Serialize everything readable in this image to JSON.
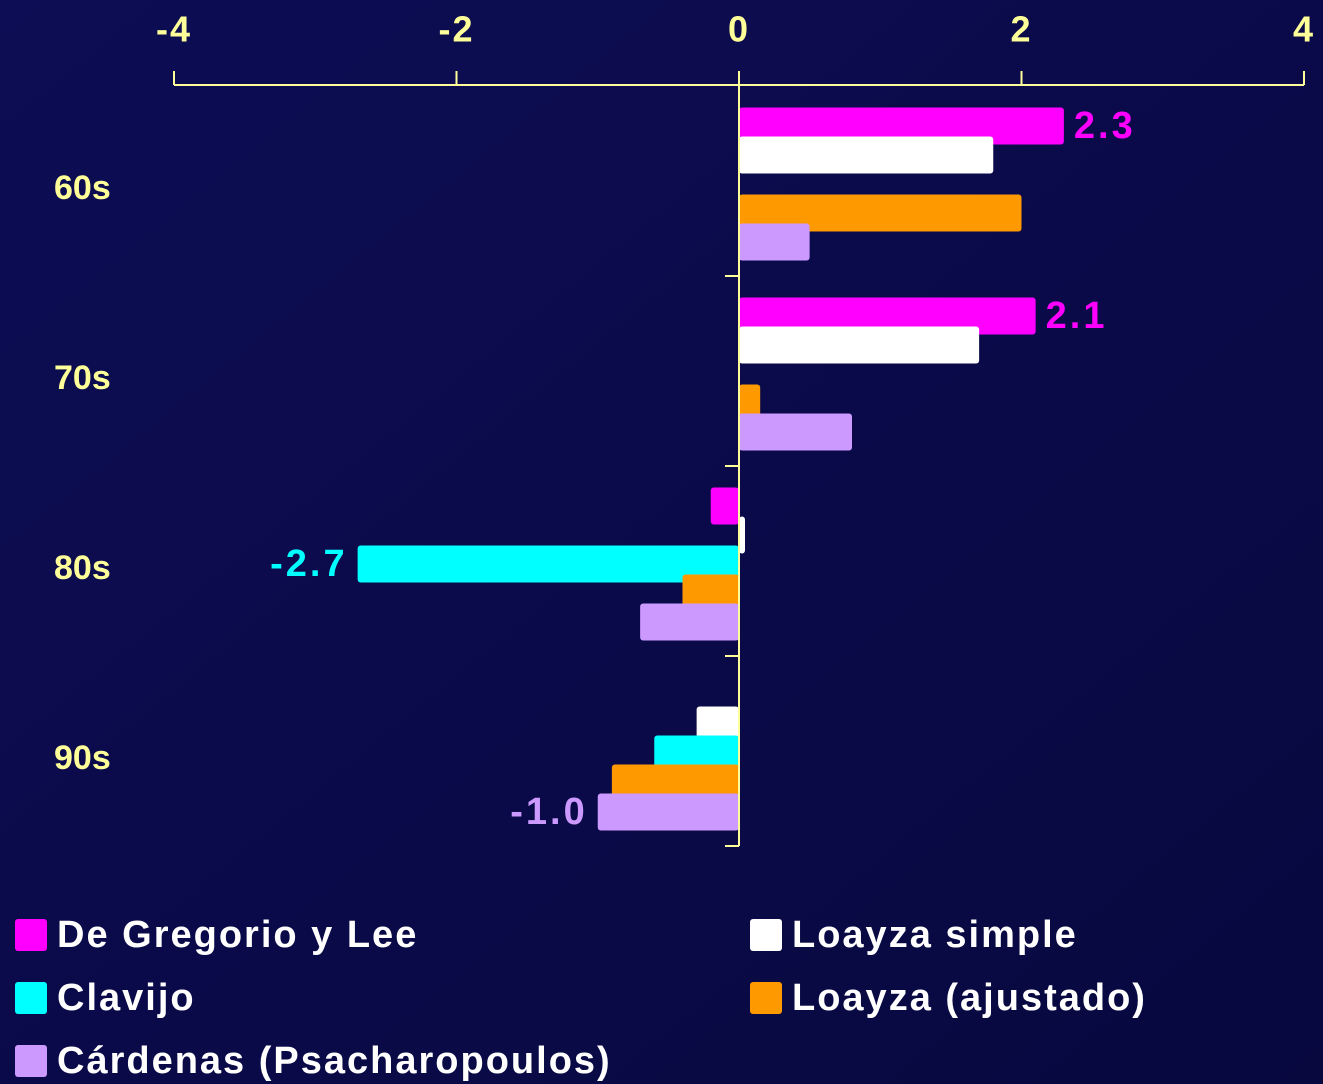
{
  "chart_data": {
    "type": "bar",
    "orientation": "horizontal",
    "categories": [
      "60s",
      "70s",
      "80s",
      "90s"
    ],
    "series": [
      {
        "name": "De Gregorio y Lee",
        "color": "#ff00ff",
        "values": [
          2.3,
          2.1,
          -0.2,
          null
        ],
        "value_labels": [
          "2.3",
          "2.1",
          null,
          null
        ]
      },
      {
        "name": "Loayza simple",
        "color": "#ffffff",
        "values": [
          1.8,
          1.7,
          0.04,
          -0.3
        ]
      },
      {
        "name": "Clavijo",
        "color": "#00ffff",
        "values": [
          null,
          null,
          -2.7,
          -0.6
        ],
        "value_labels": [
          null,
          null,
          "-2.7",
          null
        ]
      },
      {
        "name": "Loayza (ajustado)",
        "color": "#ff9900",
        "values": [
          2.0,
          0.15,
          -0.4,
          -0.9
        ]
      },
      {
        "name": "Cárdenas (Psacharopoulos)",
        "color": "#cc99ff",
        "values": [
          0.5,
          0.8,
          -0.7,
          -1.0
        ],
        "value_labels": [
          null,
          null,
          null,
          "-1.0"
        ]
      }
    ],
    "xlim": [
      -4,
      4
    ],
    "xticks": [
      -4,
      -2,
      0,
      2,
      4
    ],
    "axis_color": "#ffff99"
  }
}
